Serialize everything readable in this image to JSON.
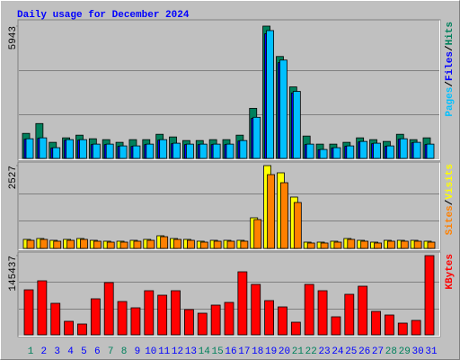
{
  "chart_data": [
    {
      "type": "bar",
      "title": "Daily usage for December 2024",
      "categories": [
        "1",
        "2",
        "3",
        "4",
        "5",
        "6",
        "7",
        "8",
        "9",
        "10",
        "11",
        "12",
        "13",
        "14",
        "15",
        "16",
        "17",
        "18",
        "19",
        "20",
        "21",
        "22",
        "23",
        "24",
        "25",
        "26",
        "27",
        "28",
        "29",
        "30",
        "31"
      ],
      "series": [
        {
          "name": "Hits",
          "color": "#00805c",
          "values": [
            1124,
            1566,
            723,
            924,
            1044,
            883,
            843,
            723,
            843,
            843,
            1084,
            964,
            803,
            803,
            843,
            843,
            1044,
            2249,
            5943,
            4578,
            3212,
            1004,
            642,
            642,
            723,
            924,
            843,
            763,
            1084,
            843,
            924
          ]
        },
        {
          "name": "Files",
          "color": "#0000ff",
          "values": [
            860,
            900,
            470,
            820,
            820,
            620,
            620,
            540,
            540,
            620,
            820,
            660,
            620,
            620,
            620,
            620,
            780,
            1800,
            5600,
            4300,
            2940,
            620,
            390,
            470,
            540,
            740,
            660,
            540,
            860,
            700,
            620
          ]
        },
        {
          "name": "Pages",
          "color": "#00c0ff",
          "values": [
            883,
            924,
            482,
            843,
            843,
            642,
            642,
            562,
            562,
            642,
            843,
            683,
            642,
            642,
            642,
            642,
            803,
            1847,
            5742,
            4417,
            3011,
            642,
            402,
            482,
            562,
            763,
            683,
            562,
            883,
            723,
            642
          ]
        }
      ],
      "legend_separator": "/",
      "ylim": [
        0,
        5943
      ],
      "yticks": [
        5943
      ]
    },
    {
      "type": "bar",
      "categories": [
        "1",
        "2",
        "3",
        "4",
        "5",
        "6",
        "7",
        "8",
        "9",
        "10",
        "11",
        "12",
        "13",
        "14",
        "15",
        "16",
        "17",
        "18",
        "19",
        "20",
        "21",
        "22",
        "23",
        "24",
        "25",
        "26",
        "27",
        "28",
        "29",
        "30",
        "31"
      ],
      "series": [
        {
          "name": "Visits",
          "color": "#ffff00",
          "values": [
            275,
            302,
            247,
            275,
            302,
            247,
            220,
            220,
            247,
            275,
            385,
            302,
            275,
            220,
            247,
            247,
            247,
            934,
            2527,
            2307,
            1566,
            192,
            192,
            220,
            302,
            247,
            192,
            247,
            247,
            247,
            220
          ]
        },
        {
          "name": "Sites",
          "color": "#ff8000",
          "values": [
            247,
            275,
            220,
            247,
            275,
            220,
            192,
            192,
            220,
            247,
            357,
            275,
            247,
            192,
            220,
            220,
            220,
            879,
            2252,
            2005,
            1401,
            165,
            165,
            192,
            275,
            220,
            165,
            220,
            220,
            220,
            192
          ]
        }
      ],
      "legend_separator": "/",
      "ylim": [
        0,
        2527
      ],
      "yticks": [
        2527
      ]
    },
    {
      "type": "bar",
      "categories": [
        "1",
        "2",
        "3",
        "4",
        "5",
        "6",
        "7",
        "8",
        "9",
        "10",
        "11",
        "12",
        "13",
        "14",
        "15",
        "16",
        "17",
        "18",
        "19",
        "20",
        "21",
        "22",
        "23",
        "24",
        "25",
        "26",
        "27",
        "28",
        "29",
        "30",
        "31"
      ],
      "category_colors": [
        "#00805c",
        "#0000ff",
        "#0000ff",
        "#0000ff",
        "#0000ff",
        "#0000ff",
        "#00805c",
        "#00805c",
        "#0000ff",
        "#0000ff",
        "#0000ff",
        "#0000ff",
        "#0000ff",
        "#00805c",
        "#00805c",
        "#0000ff",
        "#0000ff",
        "#0000ff",
        "#0000ff",
        "#0000ff",
        "#00805c",
        "#00805c",
        "#0000ff",
        "#0000ff",
        "#0000ff",
        "#0000ff",
        "#0000ff",
        "#00805c",
        "#00805c",
        "#0000ff",
        "#0000ff"
      ],
      "series": [
        {
          "name": "KBytes",
          "color": "#ff0000",
          "values": [
            82635,
            99162,
            57843,
            24790,
            19832,
            66107,
            95856,
            61149,
            49581,
            80982,
            72719,
            80982,
            46275,
            39664,
            54539,
            59497,
            115689,
            92550,
            62802,
            51233,
            23138,
            92550,
            80982,
            33054,
            74371,
            89245,
            42970,
            36359,
            21485,
            26443,
            145437
          ]
        }
      ],
      "ylim": [
        0,
        145437
      ],
      "yticks": [
        145437
      ]
    }
  ]
}
